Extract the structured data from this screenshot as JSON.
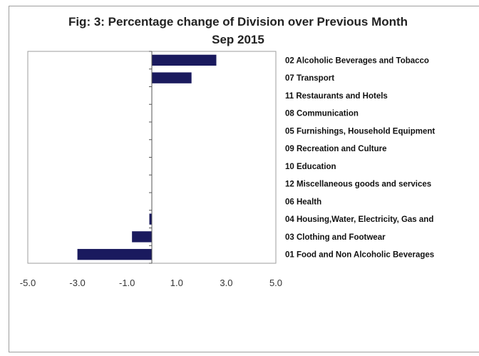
{
  "chart_data": {
    "type": "bar",
    "orientation": "horizontal",
    "title": "Fig: 3: Percentage change of Division over Previous Month",
    "subtitle": "Sep 2015",
    "categories": [
      "02 Alcoholic Beverages and Tobacco",
      "07 Transport",
      "11 Restaurants and Hotels",
      "08 Communication",
      "05 Furnishings, Household Equipment",
      "09 Recreation and Culture",
      "10 Education",
      "12 Miscellaneous goods and services",
      "06 Health",
      "04 Housing,Water, Electricity, Gas and",
      "03 Clothing and Footwear",
      "01 Food and Non Alcoholic Beverages"
    ],
    "values": [
      2.6,
      1.6,
      0,
      0,
      0,
      0,
      0,
      0,
      0,
      -0.1,
      -0.8,
      -3.0
    ],
    "xlim": [
      -5.0,
      5.0
    ],
    "xticks": [
      "-5.0",
      "-3.0",
      "-1.0",
      "1.0",
      "3.0",
      "5.0"
    ],
    "xtick_values": [
      -5,
      -3,
      -1,
      1,
      3,
      5
    ],
    "xlabel": "",
    "ylabel": "",
    "bar_color": "#1a1a5e",
    "grid": false,
    "legend": "none"
  }
}
